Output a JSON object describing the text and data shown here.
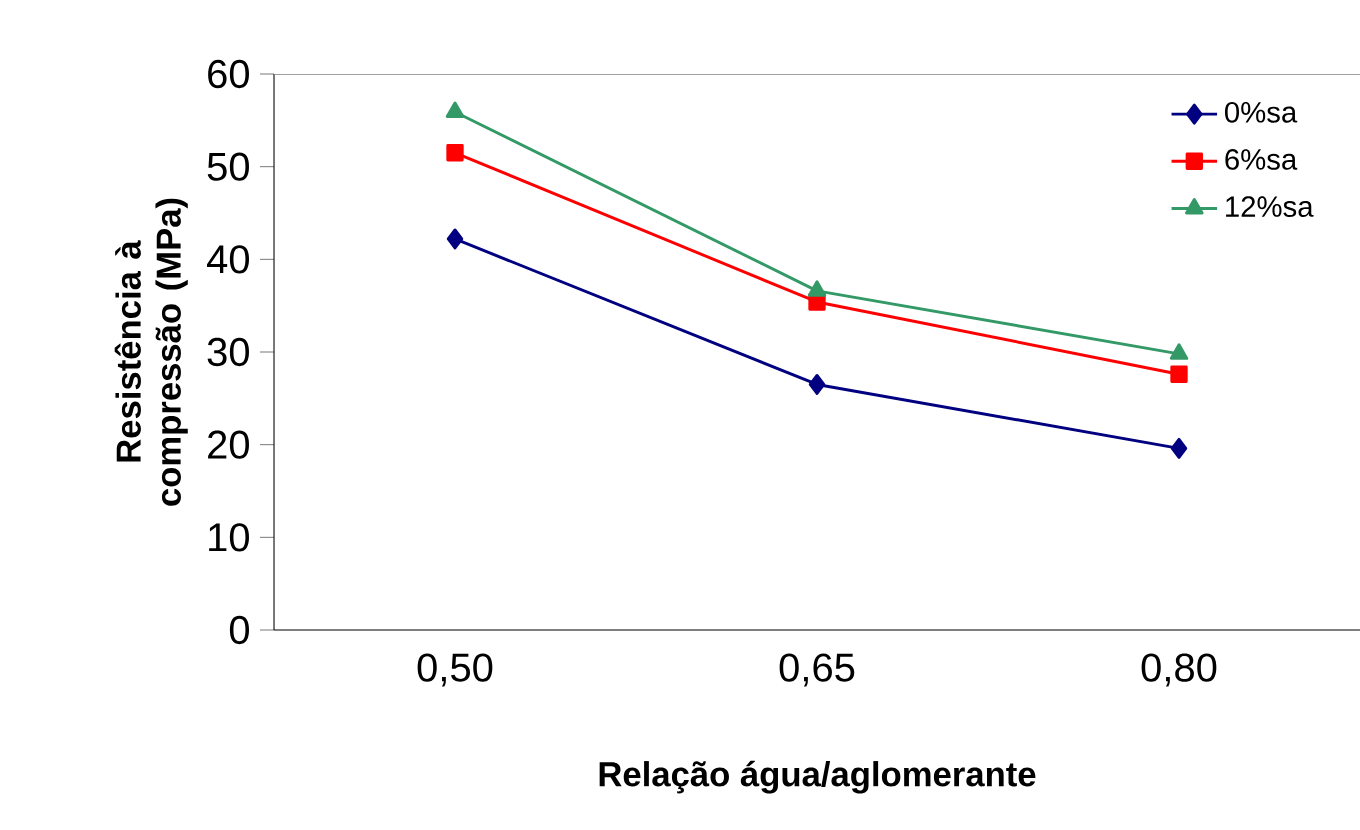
{
  "chart_data": {
    "type": "line",
    "xlabel": "Relação água/aglomerante",
    "ylabel": "Resistência à compressão (MPa)",
    "categories": [
      "0,50",
      "0,65",
      "0,80"
    ],
    "ylim": [
      0,
      60
    ],
    "yticks": [
      0,
      10,
      20,
      30,
      40,
      50,
      60
    ],
    "legend": "top right",
    "grid": false,
    "series": [
      {
        "name": "0%sa",
        "color": "#000080",
        "marker": "diamond",
        "values": [
          42.2,
          26.5,
          19.6
        ]
      },
      {
        "name": "6%sa",
        "color": "#ff0000",
        "marker": "square",
        "values": [
          51.5,
          35.4,
          27.6
        ]
      },
      {
        "name": "12%sa",
        "color": "#339966",
        "marker": "triangle",
        "values": [
          55.9,
          36.6,
          29.8
        ]
      }
    ]
  }
}
